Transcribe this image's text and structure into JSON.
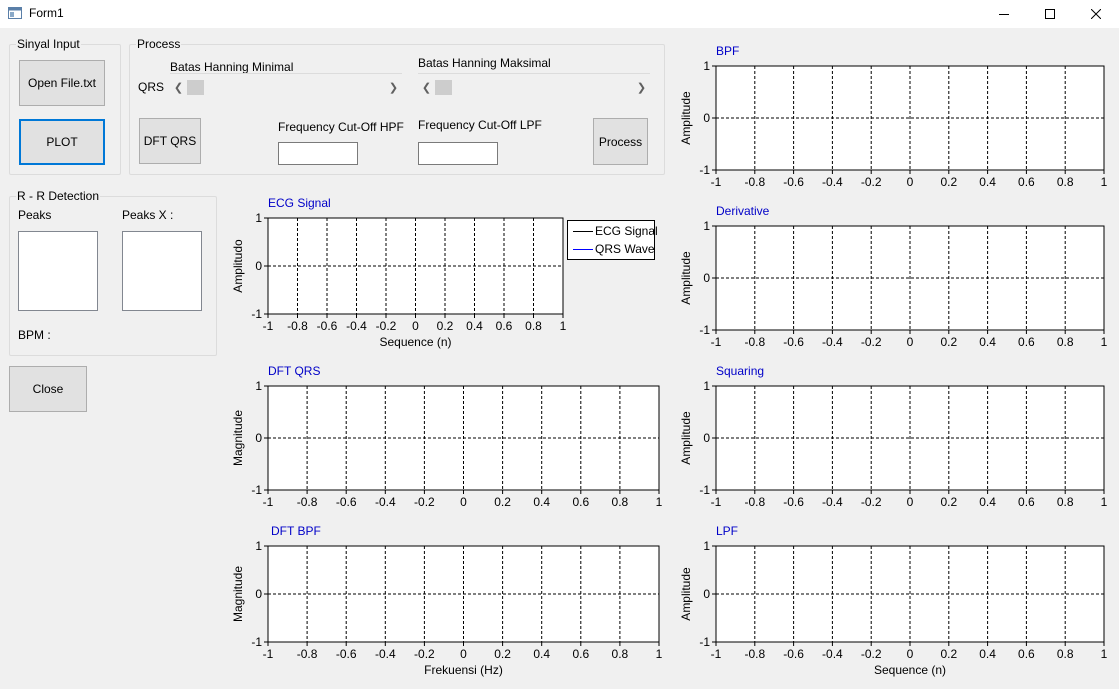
{
  "window": {
    "title": "Form1"
  },
  "sinyal_input": {
    "label": "Sinyal Input",
    "open_file_label": "Open File.txt",
    "plot_label": "PLOT"
  },
  "process": {
    "label": "Process",
    "hanning_min_label": "Batas Hanning Minimal",
    "hanning_max_label": "Batas Hanning Maksimal",
    "qrs_label": "QRS",
    "dft_qrs_label": "DFT QRS",
    "hpf_label": "Frequency Cut-Off HPF",
    "lpf_label": "Frequency Cut-Off LPF",
    "hpf_value": "",
    "lpf_value": "",
    "process_label": "Process"
  },
  "rr": {
    "label": "R - R Detection",
    "peaks_label": "Peaks",
    "peaks_x_label": "Peaks X :",
    "bpm_label": "BPM :"
  },
  "close_label": "Close",
  "legend": {
    "ecg": "ECG Signal",
    "qrs": "QRS Wave"
  },
  "x_ticks": [
    "-1",
    "-0.8",
    "-0.6",
    "-0.4",
    "-0.2",
    "0",
    "0.2",
    "0.4",
    "0.6",
    "0.8",
    "1"
  ],
  "y_ticks": [
    "1",
    "0",
    "-1"
  ],
  "chart_data": [
    {
      "type": "line",
      "title": "ECG Signal",
      "xlabel": "Sequence (n)",
      "ylabel": "Amplitudo",
      "xlim": [
        -1,
        1
      ],
      "ylim": [
        -1,
        1
      ],
      "grid": true,
      "legend": "top-right",
      "series": [
        {
          "name": "ECG Signal",
          "values": []
        },
        {
          "name": "QRS Wave",
          "values": []
        }
      ]
    },
    {
      "type": "line",
      "title": "DFT QRS",
      "xlabel": "",
      "ylabel": "Magnitude",
      "xlim": [
        -1,
        1
      ],
      "ylim": [
        -1,
        1
      ],
      "grid": true,
      "series": []
    },
    {
      "type": "line",
      "title": "DFT BPF",
      "xlabel": "Frekuensi (Hz)",
      "ylabel": "Magnitude",
      "xlim": [
        -1,
        1
      ],
      "ylim": [
        -1,
        1
      ],
      "grid": true,
      "series": []
    },
    {
      "type": "line",
      "title": "BPF",
      "xlabel": "",
      "ylabel": "Amplitude",
      "xlim": [
        -1,
        1
      ],
      "ylim": [
        -1,
        1
      ],
      "grid": true,
      "series": []
    },
    {
      "type": "line",
      "title": "Derivative",
      "xlabel": "",
      "ylabel": "Amplitude",
      "xlim": [
        -1,
        1
      ],
      "ylim": [
        -1,
        1
      ],
      "grid": true,
      "series": []
    },
    {
      "type": "line",
      "title": "Squaring",
      "xlabel": "",
      "ylabel": "Amplitude",
      "xlim": [
        -1,
        1
      ],
      "ylim": [
        -1,
        1
      ],
      "grid": true,
      "series": []
    },
    {
      "type": "line",
      "title": "LPF",
      "xlabel": "Sequence (n)",
      "ylabel": "Amplitude",
      "xlim": [
        -1,
        1
      ],
      "ylim": [
        -1,
        1
      ],
      "grid": true,
      "series": []
    }
  ]
}
